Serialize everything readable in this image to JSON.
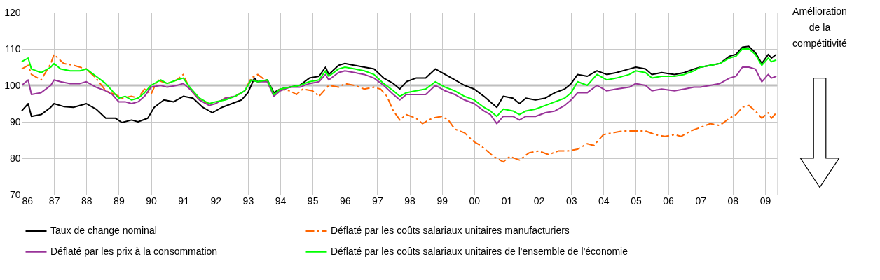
{
  "chart_data": {
    "type": "line",
    "annotations": [
      "Amélioration\nde la\ncompétitivité"
    ],
    "xlim": [
      1986,
      2009.37
    ],
    "ylim": [
      70,
      120
    ],
    "yticks": [
      70,
      80,
      90,
      100,
      110,
      120
    ],
    "xticks": [
      {
        "value": 1986,
        "label": "86"
      },
      {
        "value": 1987,
        "label": "87"
      },
      {
        "value": 1988,
        "label": "88"
      },
      {
        "value": 1989,
        "label": "89"
      },
      {
        "value": 1990,
        "label": "90"
      },
      {
        "value": 1991,
        "label": "91"
      },
      {
        "value": 1992,
        "label": "92"
      },
      {
        "value": 1993,
        "label": "93"
      },
      {
        "value": 1994,
        "label": "94"
      },
      {
        "value": 1995,
        "label": "95"
      },
      {
        "value": 1996,
        "label": "96"
      },
      {
        "value": 1997,
        "label": "97"
      },
      {
        "value": 1998,
        "label": "98"
      },
      {
        "value": 1999,
        "label": "99"
      },
      {
        "value": 2000,
        "label": "00"
      },
      {
        "value": 2001,
        "label": "01"
      },
      {
        "value": 2002,
        "label": "02"
      },
      {
        "value": 2003,
        "label": "03"
      },
      {
        "value": 2004,
        "label": "04"
      },
      {
        "value": 2005,
        "label": "05"
      },
      {
        "value": 2006,
        "label": "06"
      },
      {
        "value": 2007,
        "label": "07"
      },
      {
        "value": 2008,
        "label": "08"
      },
      {
        "value": 2009,
        "label": "09"
      }
    ],
    "grid": true,
    "legend": "bottom",
    "marker": "none",
    "ref_lines": [
      {
        "axis": "y",
        "value": 100,
        "color": "#bfbfbf"
      }
    ],
    "x": [
      1986.0,
      1986.2,
      1986.3,
      1986.6,
      1986.9,
      1987.0,
      1987.2,
      1987.5,
      1987.8,
      1988.0,
      1988.3,
      1988.6,
      1988.8,
      1989.0,
      1989.2,
      1989.4,
      1989.6,
      1989.8,
      1990.0,
      1990.3,
      1990.5,
      1990.8,
      1991.0,
      1991.2,
      1991.5,
      1991.8,
      1992.0,
      1992.3,
      1992.6,
      1992.9,
      1993.1,
      1993.3,
      1993.6,
      1993.8,
      1994.0,
      1994.3,
      1994.6,
      1994.9,
      1995.2,
      1995.4,
      1995.5,
      1995.8,
      1996.0,
      1996.3,
      1996.6,
      1996.9,
      1997.2,
      1997.5,
      1997.7,
      1997.9,
      1998.2,
      1998.5,
      1998.8,
      1999.1,
      1999.4,
      1999.7,
      2000.0,
      2000.3,
      2000.5,
      2000.7,
      2000.9,
      2001.2,
      2001.4,
      2001.6,
      2001.9,
      2002.2,
      2002.5,
      2002.8,
      2003.0,
      2003.2,
      2003.5,
      2003.8,
      2004.1,
      2004.4,
      2004.8,
      2005.0,
      2005.3,
      2005.5,
      2005.8,
      2006.2,
      2006.5,
      2006.8,
      2007.0,
      2007.3,
      2007.6,
      2007.9,
      2008.1,
      2008.3,
      2008.5,
      2008.7,
      2008.9,
      2009.1,
      2009.2,
      2009.35
    ],
    "series": [
      {
        "name": "Taux de change nominal",
        "color": "#000000",
        "line_style": "solid",
        "x": [
          1986.0,
          1986.2,
          1986.3,
          1986.6,
          1986.9,
          1987.0,
          1987.3,
          1987.6,
          1988.0,
          1988.3,
          1988.6,
          1988.9,
          1989.1,
          1989.4,
          1989.6,
          1989.9,
          1990.1,
          1990.4,
          1990.7,
          1991.0,
          1991.3,
          1991.6,
          1991.9,
          1992.2,
          1992.5,
          1992.8,
          1993.0,
          1993.2,
          1993.3,
          1993.6,
          1993.8,
          1994.0,
          1994.3,
          1994.6,
          1994.9,
          1995.2,
          1995.4,
          1995.5,
          1995.8,
          1996.0,
          1996.3,
          1996.6,
          1996.9,
          1997.2,
          1997.5,
          1997.7,
          1997.9,
          1998.2,
          1998.5,
          1998.8,
          1999.1,
          1999.4,
          1999.7,
          2000.0,
          2000.3,
          2000.5,
          2000.7,
          2000.9,
          2001.2,
          2001.4,
          2001.6,
          2001.9,
          2002.2,
          2002.5,
          2002.8,
          2003.0,
          2003.2,
          2003.5,
          2003.8,
          2004.1,
          2004.4,
          2004.8,
          2005.0,
          2005.3,
          2005.5,
          2005.8,
          2006.2,
          2006.5,
          2006.8,
          2007.0,
          2007.3,
          2007.6,
          2007.9,
          2008.1,
          2008.3,
          2008.5,
          2008.7,
          2008.9,
          2009.1,
          2009.2,
          2009.35
        ],
        "values": [
          93,
          95,
          91.5,
          92,
          94,
          95,
          94.2,
          94,
          95,
          93.5,
          91,
          91,
          89.8,
          90.5,
          90,
          91,
          94,
          96,
          95.5,
          97,
          96.5,
          94,
          92.5,
          94,
          95,
          96,
          98,
          102,
          101,
          101.5,
          98,
          99,
          99.5,
          100,
          102,
          102.5,
          105,
          103,
          105.5,
          106,
          105.5,
          105,
          104.5,
          102,
          100.5,
          99,
          101,
          102,
          102,
          104.5,
          103,
          101.5,
          100,
          99,
          97,
          95.5,
          94,
          97,
          96.5,
          95,
          96.5,
          96,
          96.5,
          98,
          99,
          100.5,
          103,
          102.5,
          104,
          103,
          103.5,
          104.5,
          105,
          104.5,
          103,
          103.5,
          103,
          103.5,
          104.5,
          105,
          105.5,
          106,
          108,
          108.5,
          110.5,
          110.7,
          109,
          106,
          108.5,
          107.5,
          108.5
        ]
      },
      {
        "name": "Déflaté par les coûts salariaux unitaires manufacturiers",
        "color": "#ff6600",
        "line_style": "dashed",
        "x": [
          1986.0,
          1986.2,
          1986.3,
          1986.6,
          1986.9,
          1987.0,
          1987.3,
          1987.6,
          1988.0,
          1988.3,
          1988.6,
          1988.9,
          1989.1,
          1989.4,
          1989.6,
          1989.8,
          1990.0,
          1990.2,
          1990.5,
          1990.8,
          1991.0,
          1991.2,
          1991.5,
          1991.8,
          1992.0,
          1992.3,
          1992.6,
          1992.9,
          1993.1,
          1993.3,
          1993.6,
          1993.8,
          1994.0,
          1994.3,
          1994.5,
          1994.7,
          1995.0,
          1995.2,
          1995.4,
          1995.5,
          1995.8,
          1996.0,
          1996.3,
          1996.6,
          1996.9,
          1997.1,
          1997.3,
          1997.5,
          1997.7,
          1997.9,
          1998.2,
          1998.4,
          1998.7,
          1999.0,
          1999.2,
          1999.4,
          1999.7,
          2000.0,
          2000.2,
          2000.4,
          2000.6,
          2000.9,
          2001.1,
          2001.4,
          2001.7,
          2002.0,
          2002.3,
          2002.6,
          2002.9,
          2003.2,
          2003.5,
          2003.7,
          2004.0,
          2004.3,
          2004.6,
          2005.0,
          2005.3,
          2005.6,
          2005.9,
          2006.2,
          2006.4,
          2006.7,
          2007.0,
          2007.3,
          2007.6,
          2007.9,
          2008.1,
          2008.3,
          2008.5,
          2008.7,
          2008.9,
          2009.1,
          2009.2,
          2009.35
        ],
        "values": [
          104.5,
          105.5,
          103,
          101.5,
          106,
          108.5,
          106,
          105.5,
          104.5,
          102,
          98.5,
          97.5,
          96.5,
          97,
          96.5,
          99,
          97.5,
          101.5,
          100.5,
          101.5,
          103,
          99,
          96,
          95,
          95,
          96.5,
          97,
          98.5,
          102,
          103,
          101,
          97.5,
          99,
          98.5,
          97.5,
          99,
          98.5,
          97,
          99,
          100,
          99.5,
          100.5,
          100,
          99,
          99.5,
          99,
          97,
          93,
          90.5,
          92,
          91,
          89.5,
          91,
          91.5,
          90.5,
          88,
          87,
          84.5,
          83.5,
          82,
          80.5,
          79,
          80.5,
          79.5,
          81.5,
          82,
          81,
          82,
          82,
          82.5,
          84,
          83.5,
          86.5,
          87,
          87.5,
          87.5,
          87.5,
          86.5,
          86,
          86.5,
          86,
          87.5,
          88.5,
          89.5,
          89,
          91,
          92,
          94,
          94.5,
          93,
          91,
          92.5,
          91,
          92.5
        ]
      },
      {
        "name": "Déflaté par les prix à la consommation",
        "color": "#993399",
        "line_style": "solid",
        "values": [
          100,
          101.5,
          97.5,
          98,
          100,
          101.5,
          101,
          100.5,
          100.5,
          101,
          99.5,
          98.5,
          97.5,
          95.5,
          95.5,
          95,
          95.5,
          97,
          99.5,
          100,
          99.5,
          100,
          100.5,
          99,
          96,
          94.5,
          95,
          96.5,
          97,
          98.5,
          101.5,
          101,
          101,
          97,
          98.5,
          99.5,
          99.5,
          100.5,
          101,
          103,
          101.5,
          103.5,
          104,
          103.5,
          103,
          102,
          100,
          97.5,
          96,
          97.5,
          97.5,
          97.5,
          100,
          98.5,
          97.5,
          96,
          95,
          93,
          92,
          89.5,
          91.5,
          91.5,
          90.5,
          91.5,
          91.5,
          92.5,
          93,
          94.5,
          96,
          98,
          98,
          100,
          98.5,
          99,
          99.5,
          100.5,
          100,
          98.5,
          99,
          98.5,
          99,
          99.5,
          99.5,
          100,
          100.5,
          102,
          102.5,
          105,
          105,
          104.5,
          101,
          103,
          102,
          102.5
        ]
      },
      {
        "name": "Déflaté par les coûts salariaux unitaires de l'ensemble de l'économie",
        "color": "#00ff00",
        "line_style": "solid",
        "values": [
          106.5,
          107.5,
          104.5,
          103.5,
          105,
          106,
          104.5,
          104,
          104,
          104.5,
          102.5,
          100.5,
          98.5,
          96.5,
          97,
          96,
          96.5,
          98,
          100,
          101.5,
          100.5,
          101.5,
          102,
          99.5,
          96.5,
          95,
          95.5,
          96,
          97,
          98.5,
          101.5,
          101,
          101.5,
          97.5,
          99,
          99.5,
          100,
          101,
          101.5,
          104,
          102.5,
          104.5,
          105,
          104.5,
          104,
          103,
          100.5,
          98.5,
          97,
          98,
          98.5,
          99,
          101,
          99.5,
          98.5,
          97,
          96,
          94,
          93,
          91.5,
          93.5,
          93,
          92,
          93,
          93.5,
          94.5,
          95.5,
          96.5,
          98,
          101,
          100,
          103,
          101.5,
          102,
          103,
          104,
          103.5,
          102,
          102.5,
          102.5,
          103,
          104,
          105,
          105.5,
          106,
          107.5,
          108,
          110,
          110,
          108.5,
          105.5,
          107.5,
          106.5,
          107
        ]
      }
    ]
  }
}
